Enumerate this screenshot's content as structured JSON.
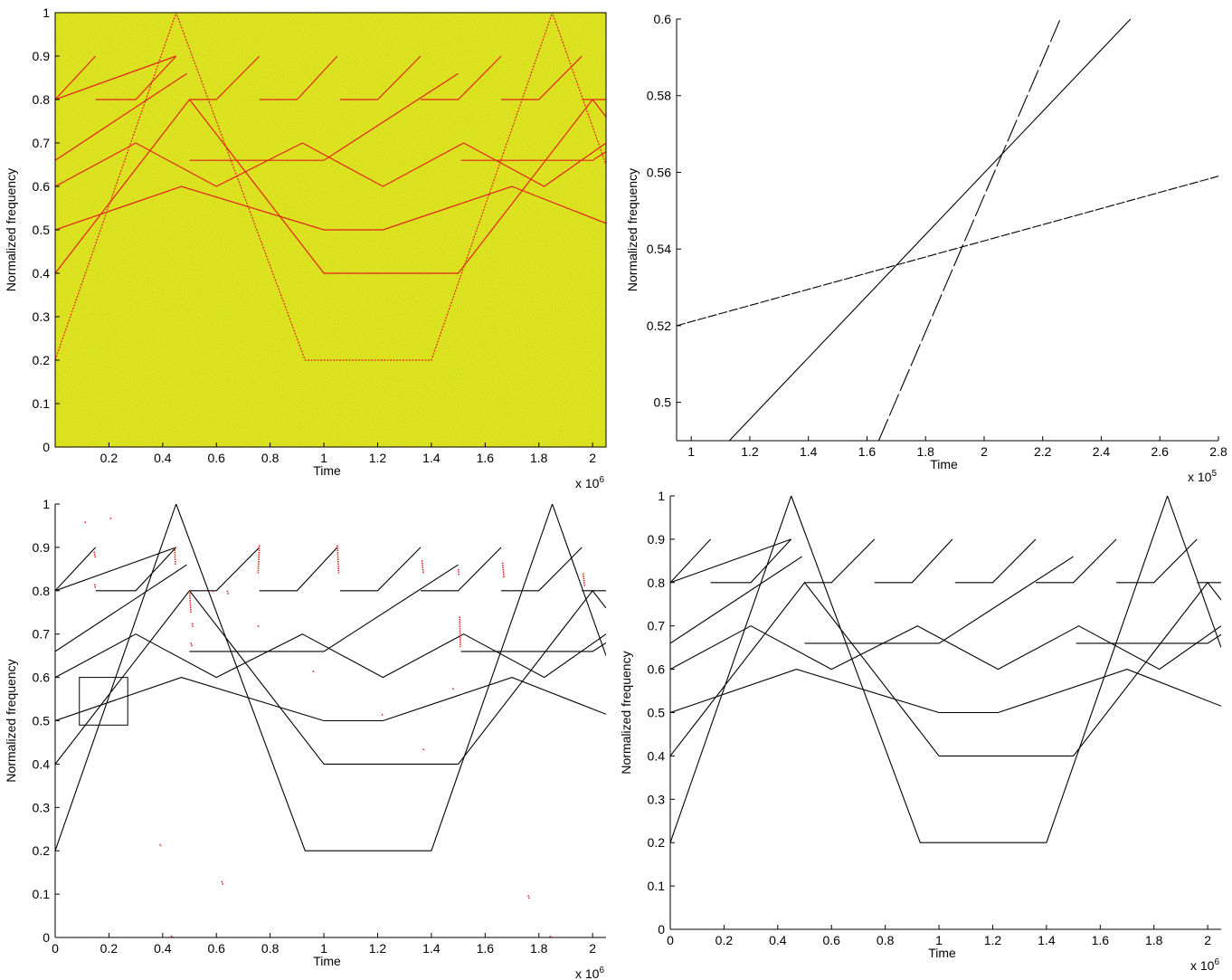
{
  "colors": {
    "background_panel1": "#d9ec1c",
    "line_panel1": "#e0221a",
    "line_black": "#000000",
    "noise_red": "#e0221a"
  },
  "chart_data": [
    {
      "id": "tl",
      "type": "line",
      "background": "spectrogram-yellow",
      "line_color": "#e0221a",
      "xlabel": "Time",
      "ylabel": "Normalized frequency",
      "x_multiplier": "x 10",
      "x_exponent": "6",
      "xlim": [
        0,
        2.05
      ],
      "ylim": [
        0,
        1
      ],
      "xticks": [
        "0.2",
        "0.4",
        "0.6",
        "0.8",
        "1",
        "1.2",
        "1.4",
        "1.6",
        "1.8",
        "2"
      ],
      "yticks": [
        "0",
        "0.1",
        "0.2",
        "0.3",
        "0.4",
        "0.5",
        "0.6",
        "0.7",
        "0.8",
        "0.9",
        "1"
      ],
      "series_ref": "main"
    },
    {
      "id": "tr",
      "type": "line",
      "xlabel": "Time",
      "ylabel": "Normalized frequency",
      "x_multiplier": "x 10",
      "x_exponent": "5",
      "xlim": [
        0.95,
        2.8
      ],
      "ylim": [
        0.49,
        0.6
      ],
      "xticks": [
        "1",
        "1.2",
        "1.4",
        "1.6",
        "1.8",
        "2",
        "2.2",
        "2.4",
        "2.6",
        "2.8"
      ],
      "yticks": [
        "0.5",
        "0.52",
        "0.54",
        "0.56",
        "0.58",
        "0.6"
      ],
      "series": [
        {
          "style": "dashed-fine",
          "points": [
            [
              0.95,
              0.52
            ],
            [
              2.8,
              0.559
            ]
          ]
        },
        {
          "style": "solid",
          "points": [
            [
              1.13,
              0.49
            ],
            [
              2.5,
              0.6
            ]
          ]
        },
        {
          "style": "dashed-long",
          "points": [
            [
              1.64,
              0.49
            ],
            [
              2.26,
              0.6
            ]
          ]
        }
      ]
    },
    {
      "id": "bl",
      "type": "line",
      "xlabel": "Time",
      "ylabel": "Normalized frequency",
      "x_multiplier": "x 10",
      "x_exponent": "6",
      "xlim": [
        0,
        2.05
      ],
      "ylim": [
        0,
        1
      ],
      "xticks": [
        "0",
        "0.2",
        "0.4",
        "0.6",
        "0.8",
        "1",
        "1.2",
        "1.4",
        "1.6",
        "1.8",
        "2"
      ],
      "yticks": [
        "0",
        "0.1",
        "0.2",
        "0.3",
        "0.4",
        "0.5",
        "0.6",
        "0.7",
        "0.8",
        "0.9",
        "1"
      ],
      "series_ref": "main",
      "zoom_box": {
        "x": [
          0.09,
          0.27
        ],
        "y": [
          0.49,
          0.6
        ]
      },
      "red_marks": [
        [
          [
            0.11,
            0.957
          ],
          [
            0.115,
            0.96
          ]
        ],
        [
          [
            0.205,
            0.968
          ],
          [
            0.208,
            0.965
          ]
        ],
        [
          [
            0.145,
            0.89
          ],
          [
            0.15,
            0.875
          ]
        ],
        [
          [
            0.147,
            0.815
          ],
          [
            0.15,
            0.805
          ]
        ],
        [
          [
            0.445,
            0.9
          ],
          [
            0.447,
            0.86
          ]
        ],
        [
          [
            0.5,
            0.8
          ],
          [
            0.505,
            0.75
          ]
        ],
        [
          [
            0.51,
            0.725
          ],
          [
            0.512,
            0.715
          ]
        ],
        [
          [
            0.505,
            0.68
          ],
          [
            0.51,
            0.67
          ]
        ],
        [
          [
            0.585,
            0.8
          ],
          [
            0.59,
            0.795
          ]
        ],
        [
          [
            0.64,
            0.8
          ],
          [
            0.645,
            0.79
          ]
        ],
        [
          [
            0.76,
            0.905
          ],
          [
            0.755,
            0.84
          ]
        ],
        [
          [
            0.755,
            0.72
          ],
          [
            0.757,
            0.715
          ]
        ],
        [
          [
            0.96,
            0.615
          ],
          [
            0.963,
            0.61
          ]
        ],
        [
          [
            1.05,
            0.905
          ],
          [
            1.055,
            0.84
          ]
        ],
        [
          [
            1.215,
            0.515
          ],
          [
            1.22,
            0.512
          ]
        ],
        [
          [
            1.365,
            0.87
          ],
          [
            1.37,
            0.84
          ]
        ],
        [
          [
            1.37,
            0.435
          ],
          [
            1.373,
            0.43
          ]
        ],
        [
          [
            1.48,
            0.575
          ],
          [
            1.483,
            0.57
          ]
        ],
        [
          [
            1.5,
            0.85
          ],
          [
            1.503,
            0.835
          ]
        ],
        [
          [
            1.505,
            0.74
          ],
          [
            1.508,
            0.67
          ]
        ],
        [
          [
            1.665,
            0.865
          ],
          [
            1.67,
            0.83
          ]
        ],
        [
          [
            1.965,
            0.84
          ],
          [
            1.97,
            0.81
          ]
        ],
        [
          [
            0.39,
            0.215
          ],
          [
            0.395,
            0.21
          ]
        ],
        [
          [
            0.62,
            0.13
          ],
          [
            0.625,
            0.12
          ]
        ],
        [
          [
            0.43,
            0.003
          ],
          [
            0.44,
            0.0
          ]
        ],
        [
          [
            1.76,
            0.097
          ],
          [
            1.765,
            0.09
          ]
        ],
        [
          [
            1.84,
            0.003
          ],
          [
            1.85,
            0.0
          ]
        ]
      ]
    },
    {
      "id": "br",
      "type": "line",
      "xlabel": "Time",
      "ylabel": "Normalized frequency",
      "x_multiplier": "x 10",
      "x_exponent": "6",
      "xlim": [
        0,
        2.05
      ],
      "ylim": [
        0,
        1
      ],
      "xticks": [
        "0",
        "0.2",
        "0.4",
        "0.6",
        "0.8",
        "1",
        "1.2",
        "1.4",
        "1.6",
        "1.8",
        "2"
      ],
      "yticks": [
        "0",
        "0.1",
        "0.2",
        "0.3",
        "0.4",
        "0.5",
        "0.6",
        "0.7",
        "0.8",
        "0.9",
        "1"
      ],
      "series_ref": "main"
    }
  ],
  "main_series": [
    {
      "name": "",
      "points": [
        [
          0,
          0.2
        ],
        [
          0.45,
          1.0
        ],
        [
          0.93,
          0.2
        ],
        [
          1.4,
          0.2
        ],
        [
          1.85,
          1.0
        ],
        [
          2.05,
          0.65
        ]
      ]
    },
    {
      "name": "",
      "points": [
        [
          0,
          0.4
        ],
        [
          0.5,
          0.8
        ],
        [
          1.0,
          0.4
        ],
        [
          1.5,
          0.4
        ],
        [
          2.0,
          0.8
        ],
        [
          2.05,
          0.76
        ]
      ]
    },
    {
      "name": "",
      "points": [
        [
          0,
          0.5
        ],
        [
          0.47,
          0.6
        ],
        [
          1.0,
          0.5
        ],
        [
          1.22,
          0.5
        ],
        [
          1.7,
          0.6
        ],
        [
          2.05,
          0.515
        ]
      ]
    },
    {
      "name": "",
      "points": [
        [
          0,
          0.6
        ],
        [
          0.3,
          0.7
        ],
        [
          0.6,
          0.6
        ],
        [
          0.92,
          0.7
        ],
        [
          1.22,
          0.6
        ],
        [
          1.52,
          0.7
        ],
        [
          1.82,
          0.6
        ],
        [
          2.05,
          0.7
        ]
      ]
    },
    {
      "name": "",
      "points": [
        [
          0,
          0.66
        ],
        [
          0.49,
          0.86
        ]
      ]
    },
    {
      "name": "",
      "points": [
        [
          0.5,
          0.66
        ],
        [
          1.0,
          0.66
        ],
        [
          1.5,
          0.86
        ]
      ]
    },
    {
      "name": "",
      "points": [
        [
          1.51,
          0.66
        ],
        [
          2.0,
          0.66
        ],
        [
          2.05,
          0.68
        ]
      ]
    },
    {
      "name": "",
      "points": [
        [
          0,
          0.8
        ],
        [
          0.45,
          0.9
        ]
      ]
    },
    {
      "name": "",
      "points": [
        [
          0,
          0.8
        ],
        [
          0.15,
          0.9
        ]
      ]
    },
    {
      "name": "",
      "points": [
        [
          0.15,
          0.8
        ],
        [
          0.3,
          0.8
        ],
        [
          0.45,
          0.9
        ]
      ]
    },
    {
      "name": "",
      "points": [
        [
          0.5,
          0.8
        ],
        [
          0.6,
          0.8
        ],
        [
          0.76,
          0.9
        ]
      ]
    },
    {
      "name": "",
      "points": [
        [
          0.76,
          0.8
        ],
        [
          0.9,
          0.8
        ],
        [
          1.05,
          0.9
        ]
      ]
    },
    {
      "name": "",
      "points": [
        [
          1.06,
          0.8
        ],
        [
          1.2,
          0.8
        ],
        [
          1.36,
          0.9
        ]
      ]
    },
    {
      "name": "",
      "points": [
        [
          1.36,
          0.8
        ],
        [
          1.5,
          0.8
        ],
        [
          1.66,
          0.9
        ]
      ]
    },
    {
      "name": "",
      "points": [
        [
          1.66,
          0.8
        ],
        [
          1.8,
          0.8
        ],
        [
          1.96,
          0.9
        ]
      ]
    },
    {
      "name": "",
      "points": [
        [
          1.96,
          0.8
        ],
        [
          2.05,
          0.8
        ]
      ]
    }
  ]
}
